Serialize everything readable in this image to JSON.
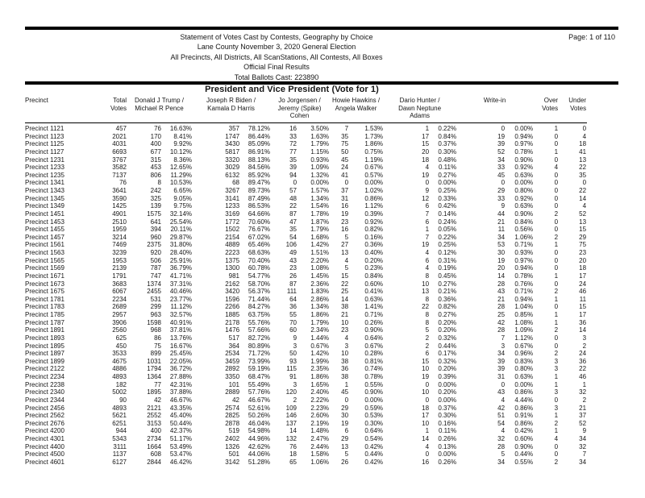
{
  "page": {
    "label": "Page: 1 of 110"
  },
  "report_header": {
    "lines": [
      "Statement of Votes Cast by Contests, Geography by Choice",
      "Lane County November 3, 2020 General Election",
      "All Precincts, All Districts, All ScanStations, All Contests, All Boxes",
      "Official Final Results",
      "Total Ballots Cast: 223890"
    ]
  },
  "contest": {
    "title": "President and Vice President (Vote for 1)"
  },
  "table": {
    "headers": [
      {
        "key": "precinct",
        "label": "Precinct"
      },
      {
        "key": "total_votes",
        "label": "Total\nVotes"
      },
      {
        "key": "trump_pence",
        "label": "Donald J Trump /\nMichael R Pence"
      },
      {
        "key": "biden_harris",
        "label": "Joseph R Biden /\nKamala D Harris"
      },
      {
        "key": "jorgensen_cohen",
        "label": "Jo Jorgensen /\nJeremy (Spike)\nCohen"
      },
      {
        "key": "hawkins_walker",
        "label": "Howie Hawkins /\nAngela Walker"
      },
      {
        "key": "hunter_adams",
        "label": "Dario Hunter /\nDawn Neptune\nAdams"
      },
      {
        "key": "write_in",
        "label": "Write-in"
      },
      {
        "key": "over_votes",
        "label": "Over\nVotes"
      },
      {
        "key": "under_votes",
        "label": "Under\nVotes"
      }
    ],
    "cell_keys": [
      "precinct",
      "total_votes",
      "trump_votes",
      "trump_pct",
      "biden_votes",
      "biden_pct",
      "jorgensen_votes",
      "jorgensen_pct",
      "hawkins_votes",
      "hawkins_pct",
      "hunter_votes",
      "hunter_pct",
      "write_in_votes",
      "write_in_pct",
      "over_votes",
      "under_votes"
    ],
    "rows": [
      [
        "Precinct 1121",
        "457",
        "76",
        "16.63%",
        "357",
        "78.12%",
        "16",
        "3.50%",
        "7",
        "1.53%",
        "1",
        "0.22%",
        "0",
        "0.00%",
        "1",
        "0"
      ],
      [
        "Precinct 1123",
        "2021",
        "170",
        "8.41%",
        "1747",
        "86.44%",
        "33",
        "1.63%",
        "35",
        "1.73%",
        "17",
        "0.84%",
        "19",
        "0.94%",
        "0",
        "4"
      ],
      [
        "Precinct 1125",
        "4031",
        "400",
        "9.92%",
        "3430",
        "85.09%",
        "72",
        "1.79%",
        "75",
        "1.86%",
        "15",
        "0.37%",
        "39",
        "0.97%",
        "0",
        "18"
      ],
      [
        "Precinct 1127",
        "6693",
        "677",
        "10.12%",
        "5817",
        "86.91%",
        "77",
        "1.15%",
        "50",
        "0.75%",
        "20",
        "0.30%",
        "52",
        "0.78%",
        "1",
        "41"
      ],
      [
        "Precinct 1231",
        "3767",
        "315",
        "8.36%",
        "3320",
        "88.13%",
        "35",
        "0.93%",
        "45",
        "1.19%",
        "18",
        "0.48%",
        "34",
        "0.90%",
        "0",
        "13"
      ],
      [
        "Precinct 1233",
        "3582",
        "453",
        "12.65%",
        "3029",
        "84.56%",
        "39",
        "1.09%",
        "24",
        "0.67%",
        "4",
        "0.11%",
        "33",
        "0.92%",
        "4",
        "22"
      ],
      [
        "Precinct 1235",
        "7137",
        "806",
        "11.29%",
        "6132",
        "85.92%",
        "94",
        "1.32%",
        "41",
        "0.57%",
        "19",
        "0.27%",
        "45",
        "0.63%",
        "0",
        "35"
      ],
      [
        "Precinct 1341",
        "76",
        "8",
        "10.53%",
        "68",
        "89.47%",
        "0",
        "0.00%",
        "0",
        "0.00%",
        "0",
        "0.00%",
        "0",
        "0.00%",
        "0",
        "0"
      ],
      [
        "Precinct 1343",
        "3641",
        "242",
        "6.65%",
        "3267",
        "89.73%",
        "57",
        "1.57%",
        "37",
        "1.02%",
        "9",
        "0.25%",
        "29",
        "0.80%",
        "0",
        "22"
      ],
      [
        "Precinct 1345",
        "3590",
        "325",
        "9.05%",
        "3141",
        "87.49%",
        "48",
        "1.34%",
        "31",
        "0.86%",
        "12",
        "0.33%",
        "33",
        "0.92%",
        "0",
        "14"
      ],
      [
        "Precinct 1349",
        "1425",
        "139",
        "9.75%",
        "1233",
        "86.53%",
        "22",
        "1.54%",
        "16",
        "1.12%",
        "6",
        "0.42%",
        "9",
        "0.63%",
        "0",
        "4"
      ],
      [
        "Precinct 1451",
        "4901",
        "1575",
        "32.14%",
        "3169",
        "64.66%",
        "87",
        "1.78%",
        "19",
        "0.39%",
        "7",
        "0.14%",
        "44",
        "0.90%",
        "2",
        "52"
      ],
      [
        "Precinct 1453",
        "2510",
        "641",
        "25.54%",
        "1772",
        "70.60%",
        "47",
        "1.87%",
        "23",
        "0.92%",
        "6",
        "0.24%",
        "21",
        "0.84%",
        "0",
        "13"
      ],
      [
        "Precinct 1455",
        "1959",
        "394",
        "20.11%",
        "1502",
        "76.67%",
        "35",
        "1.79%",
        "16",
        "0.82%",
        "1",
        "0.05%",
        "11",
        "0.56%",
        "0",
        "15"
      ],
      [
        "Precinct 1457",
        "3214",
        "960",
        "29.87%",
        "2154",
        "67.02%",
        "54",
        "1.68%",
        "5",
        "0.16%",
        "7",
        "0.22%",
        "34",
        "1.06%",
        "2",
        "29"
      ],
      [
        "Precinct 1561",
        "7469",
        "2375",
        "31.80%",
        "4889",
        "65.46%",
        "106",
        "1.42%",
        "27",
        "0.36%",
        "19",
        "0.25%",
        "53",
        "0.71%",
        "1",
        "75"
      ],
      [
        "Precinct 1563",
        "3239",
        "920",
        "28.40%",
        "2223",
        "68.63%",
        "49",
        "1.51%",
        "13",
        "0.40%",
        "4",
        "0.12%",
        "30",
        "0.93%",
        "0",
        "23"
      ],
      [
        "Precinct 1565",
        "1953",
        "506",
        "25.91%",
        "1375",
        "70.40%",
        "43",
        "2.20%",
        "4",
        "0.20%",
        "6",
        "0.31%",
        "19",
        "0.97%",
        "0",
        "20"
      ],
      [
        "Precinct 1569",
        "2139",
        "787",
        "36.79%",
        "1300",
        "60.78%",
        "23",
        "1.08%",
        "5",
        "0.23%",
        "4",
        "0.19%",
        "20",
        "0.94%",
        "0",
        "18"
      ],
      [
        "Precinct 1671",
        "1791",
        "747",
        "41.71%",
        "981",
        "54.77%",
        "26",
        "1.45%",
        "15",
        "0.84%",
        "8",
        "0.45%",
        "14",
        "0.78%",
        "1",
        "17"
      ],
      [
        "Precinct 1673",
        "3683",
        "1374",
        "37.31%",
        "2162",
        "58.70%",
        "87",
        "2.36%",
        "22",
        "0.60%",
        "10",
        "0.27%",
        "28",
        "0.76%",
        "0",
        "24"
      ],
      [
        "Precinct 1675",
        "6067",
        "2455",
        "40.46%",
        "3420",
        "56.37%",
        "111",
        "1.83%",
        "25",
        "0.41%",
        "13",
        "0.21%",
        "43",
        "0.71%",
        "2",
        "46"
      ],
      [
        "Precinct 1781",
        "2234",
        "531",
        "23.77%",
        "1596",
        "71.44%",
        "64",
        "2.86%",
        "14",
        "0.63%",
        "8",
        "0.36%",
        "21",
        "0.94%",
        "1",
        "11"
      ],
      [
        "Precinct 1783",
        "2689",
        "299",
        "11.12%",
        "2266",
        "84.27%",
        "36",
        "1.34%",
        "38",
        "1.41%",
        "22",
        "0.82%",
        "28",
        "1.04%",
        "0",
        "15"
      ],
      [
        "Precinct 1785",
        "2957",
        "963",
        "32.57%",
        "1885",
        "63.75%",
        "55",
        "1.86%",
        "21",
        "0.71%",
        "8",
        "0.27%",
        "25",
        "0.85%",
        "1",
        "17"
      ],
      [
        "Precinct 1787",
        "3906",
        "1598",
        "40.91%",
        "2178",
        "55.76%",
        "70",
        "1.79%",
        "10",
        "0.26%",
        "8",
        "0.20%",
        "42",
        "1.08%",
        "1",
        "36"
      ],
      [
        "Precinct 1891",
        "2560",
        "968",
        "37.81%",
        "1476",
        "57.66%",
        "60",
        "2.34%",
        "23",
        "0.90%",
        "5",
        "0.20%",
        "28",
        "1.09%",
        "2",
        "14"
      ],
      [
        "Precinct 1893",
        "625",
        "86",
        "13.76%",
        "517",
        "82.72%",
        "9",
        "1.44%",
        "4",
        "0.64%",
        "2",
        "0.32%",
        "7",
        "1.12%",
        "0",
        "3"
      ],
      [
        "Precinct 1895",
        "450",
        "75",
        "16.67%",
        "364",
        "80.89%",
        "3",
        "0.67%",
        "3",
        "0.67%",
        "2",
        "0.44%",
        "3",
        "0.67%",
        "0",
        "2"
      ],
      [
        "Precinct 1897",
        "3533",
        "899",
        "25.45%",
        "2534",
        "71.72%",
        "50",
        "1.42%",
        "10",
        "0.28%",
        "6",
        "0.17%",
        "34",
        "0.96%",
        "2",
        "24"
      ],
      [
        "Precinct 1899",
        "4675",
        "1031",
        "22.05%",
        "3459",
        "73.99%",
        "93",
        "1.99%",
        "38",
        "0.81%",
        "15",
        "0.32%",
        "39",
        "0.83%",
        "3",
        "36"
      ],
      [
        "Precinct 2122",
        "4886",
        "1794",
        "36.72%",
        "2892",
        "59.19%",
        "115",
        "2.35%",
        "36",
        "0.74%",
        "10",
        "0.20%",
        "39",
        "0.80%",
        "3",
        "22"
      ],
      [
        "Precinct 2234",
        "4893",
        "1364",
        "27.88%",
        "3350",
        "68.47%",
        "91",
        "1.86%",
        "38",
        "0.78%",
        "19",
        "0.39%",
        "31",
        "0.63%",
        "1",
        "46"
      ],
      [
        "Precinct 2238",
        "182",
        "77",
        "42.31%",
        "101",
        "55.49%",
        "3",
        "1.65%",
        "1",
        "0.55%",
        "0",
        "0.00%",
        "0",
        "0.00%",
        "1",
        "1"
      ],
      [
        "Precinct 2340",
        "5002",
        "1895",
        "37.88%",
        "2889",
        "57.76%",
        "120",
        "2.40%",
        "45",
        "0.90%",
        "10",
        "0.20%",
        "43",
        "0.86%",
        "3",
        "32"
      ],
      [
        "Precinct 2344",
        "90",
        "42",
        "46.67%",
        "42",
        "46.67%",
        "2",
        "2.22%",
        "0",
        "0.00%",
        "0",
        "0.00%",
        "4",
        "4.44%",
        "0",
        "2"
      ],
      [
        "Precinct 2456",
        "4893",
        "2121",
        "43.35%",
        "2574",
        "52.61%",
        "109",
        "2.23%",
        "29",
        "0.59%",
        "18",
        "0.37%",
        "42",
        "0.86%",
        "3",
        "21"
      ],
      [
        "Precinct 2562",
        "5621",
        "2552",
        "45.40%",
        "2825",
        "50.26%",
        "146",
        "2.60%",
        "30",
        "0.53%",
        "17",
        "0.30%",
        "51",
        "0.91%",
        "1",
        "37"
      ],
      [
        "Precinct 2676",
        "6251",
        "3153",
        "50.44%",
        "2878",
        "46.04%",
        "137",
        "2.19%",
        "19",
        "0.30%",
        "10",
        "0.16%",
        "54",
        "0.86%",
        "2",
        "52"
      ],
      [
        "Precinct 4200",
        "944",
        "400",
        "42.37%",
        "519",
        "54.98%",
        "14",
        "1.48%",
        "6",
        "0.64%",
        "1",
        "0.11%",
        "4",
        "0.42%",
        "1",
        "9"
      ],
      [
        "Precinct 4301",
        "5343",
        "2734",
        "51.17%",
        "2402",
        "44.96%",
        "132",
        "2.47%",
        "29",
        "0.54%",
        "14",
        "0.26%",
        "32",
        "0.60%",
        "4",
        "34"
      ],
      [
        "Precinct 4400",
        "3111",
        "1664",
        "53.49%",
        "1326",
        "42.62%",
        "76",
        "2.44%",
        "13",
        "0.42%",
        "4",
        "0.13%",
        "28",
        "0.90%",
        "0",
        "32"
      ],
      [
        "Precinct 4500",
        "1137",
        "608",
        "53.47%",
        "501",
        "44.06%",
        "18",
        "1.58%",
        "5",
        "0.44%",
        "0",
        "0.00%",
        "5",
        "0.44%",
        "0",
        "7"
      ],
      [
        "Precinct 4601",
        "6127",
        "2844",
        "46.42%",
        "3142",
        "51.28%",
        "65",
        "1.06%",
        "26",
        "0.42%",
        "16",
        "0.26%",
        "34",
        "0.55%",
        "2",
        "34"
      ]
    ]
  }
}
